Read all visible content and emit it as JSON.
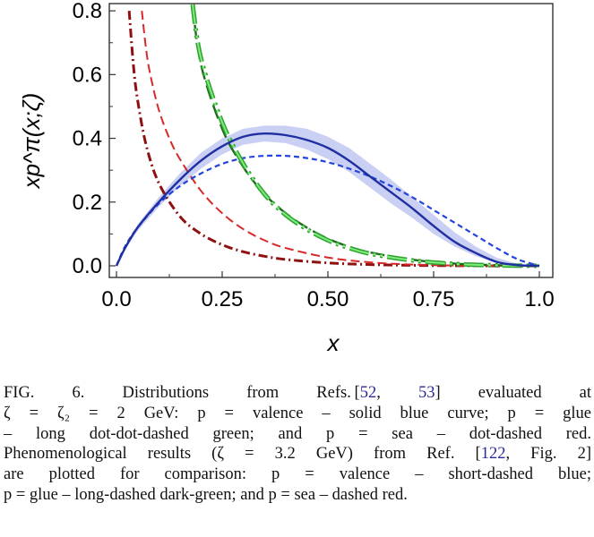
{
  "chart_data": {
    "type": "line",
    "ylabel": "xp^π(x;ζ)",
    "xlabel": "x",
    "xlim": [
      0.0,
      1.0
    ],
    "ylim": [
      0.0,
      0.82
    ],
    "x_ticks": [
      "0.0",
      "0.25",
      "0.50",
      "0.75",
      "1.0"
    ],
    "y_ticks": [
      "0.0",
      "0.2",
      "0.4",
      "0.6",
      "0.8"
    ],
    "grid": false,
    "colors": {
      "valence": "#1f2fa0",
      "band": "#b8bff0",
      "glue": "#2ea32e",
      "glue_light": "#7fea7f",
      "glue_dark": "#1c6b1c",
      "sea": "#8e1010",
      "sea_pheno": "#d62a2a",
      "pheno_valence": "#2244dd"
    },
    "series": [
      {
        "style": "solid blue",
        "color": "valence",
        "points": [
          [
            0,
            0
          ],
          [
            0.02,
            0.055
          ],
          [
            0.05,
            0.12
          ],
          [
            0.1,
            0.2
          ],
          [
            0.15,
            0.27
          ],
          [
            0.2,
            0.33
          ],
          [
            0.25,
            0.375
          ],
          [
            0.3,
            0.405
          ],
          [
            0.35,
            0.415
          ],
          [
            0.4,
            0.41
          ],
          [
            0.45,
            0.395
          ],
          [
            0.5,
            0.37
          ],
          [
            0.55,
            0.33
          ],
          [
            0.6,
            0.28
          ],
          [
            0.65,
            0.23
          ],
          [
            0.7,
            0.18
          ],
          [
            0.75,
            0.125
          ],
          [
            0.8,
            0.075
          ],
          [
            0.85,
            0.04
          ],
          [
            0.9,
            0.012
          ],
          [
            0.95,
            0.002
          ],
          [
            1.0,
            0
          ]
        ]
      },
      {
        "style": "long dot-dot-dashed green",
        "color": "glue",
        "points": [
          [
            0.18,
            0.82
          ],
          [
            0.2,
            0.65
          ],
          [
            0.25,
            0.45
          ],
          [
            0.3,
            0.32
          ],
          [
            0.35,
            0.225
          ],
          [
            0.4,
            0.16
          ],
          [
            0.45,
            0.115
          ],
          [
            0.5,
            0.08
          ],
          [
            0.55,
            0.056
          ],
          [
            0.6,
            0.038
          ],
          [
            0.7,
            0.017
          ],
          [
            0.8,
            0.006
          ],
          [
            0.9,
            0.0015
          ],
          [
            1.0,
            0
          ]
        ]
      },
      {
        "style": "long-dashed dark-green",
        "color": "glue_dark",
        "points": [
          [
            0.18,
            0.82
          ],
          [
            0.2,
            0.63
          ],
          [
            0.25,
            0.43
          ],
          [
            0.3,
            0.31
          ],
          [
            0.35,
            0.225
          ],
          [
            0.4,
            0.165
          ],
          [
            0.45,
            0.12
          ],
          [
            0.5,
            0.085
          ],
          [
            0.55,
            0.06
          ],
          [
            0.6,
            0.042
          ],
          [
            0.7,
            0.019
          ],
          [
            0.8,
            0.007
          ],
          [
            0.9,
            0.002
          ],
          [
            1.0,
            0
          ]
        ]
      },
      {
        "style": "dot-dashed red",
        "color": "sea",
        "points": [
          [
            0.03,
            0.8
          ],
          [
            0.04,
            0.63
          ],
          [
            0.05,
            0.52
          ],
          [
            0.07,
            0.38
          ],
          [
            0.1,
            0.26
          ],
          [
            0.15,
            0.155
          ],
          [
            0.2,
            0.1
          ],
          [
            0.25,
            0.066
          ],
          [
            0.3,
            0.044
          ],
          [
            0.35,
            0.03
          ],
          [
            0.4,
            0.02
          ],
          [
            0.5,
            0.009
          ],
          [
            0.6,
            0.004
          ],
          [
            0.7,
            0.0015
          ],
          [
            0.8,
            0.0004
          ],
          [
            0.9,
            0.0001
          ],
          [
            1.0,
            0
          ]
        ]
      },
      {
        "style": "short-dashed blue",
        "color": "pheno_valence",
        "points": [
          [
            0,
            0
          ],
          [
            0.02,
            0.06
          ],
          [
            0.05,
            0.12
          ],
          [
            0.1,
            0.195
          ],
          [
            0.15,
            0.25
          ],
          [
            0.2,
            0.29
          ],
          [
            0.25,
            0.32
          ],
          [
            0.3,
            0.338
          ],
          [
            0.35,
            0.345
          ],
          [
            0.4,
            0.345
          ],
          [
            0.45,
            0.338
          ],
          [
            0.5,
            0.325
          ],
          [
            0.55,
            0.305
          ],
          [
            0.6,
            0.28
          ],
          [
            0.65,
            0.25
          ],
          [
            0.7,
            0.215
          ],
          [
            0.75,
            0.175
          ],
          [
            0.8,
            0.135
          ],
          [
            0.85,
            0.095
          ],
          [
            0.9,
            0.055
          ],
          [
            0.95,
            0.02
          ],
          [
            1.0,
            0
          ]
        ]
      },
      {
        "style": "dashed red",
        "color": "sea_pheno",
        "points": [
          [
            0.06,
            0.8
          ],
          [
            0.07,
            0.68
          ],
          [
            0.08,
            0.6
          ],
          [
            0.1,
            0.49
          ],
          [
            0.125,
            0.4
          ],
          [
            0.15,
            0.335
          ],
          [
            0.2,
            0.235
          ],
          [
            0.25,
            0.165
          ],
          [
            0.3,
            0.115
          ],
          [
            0.35,
            0.08
          ],
          [
            0.4,
            0.056
          ],
          [
            0.5,
            0.026
          ],
          [
            0.6,
            0.011
          ],
          [
            0.7,
            0.004
          ],
          [
            0.8,
            0.001
          ],
          [
            0.9,
            0.0002
          ],
          [
            1.0,
            0
          ]
        ]
      }
    ],
    "band": {
      "color": "band",
      "x": [
        0.02,
        0.05,
        0.1,
        0.15,
        0.2,
        0.25,
        0.3,
        0.35,
        0.4,
        0.45,
        0.5,
        0.55,
        0.6,
        0.65,
        0.7,
        0.75,
        0.8,
        0.85,
        0.9,
        0.95,
        1.0
      ],
      "upper": [
        0.06,
        0.13,
        0.215,
        0.29,
        0.355,
        0.4,
        0.43,
        0.44,
        0.44,
        0.43,
        0.405,
        0.37,
        0.32,
        0.27,
        0.215,
        0.16,
        0.105,
        0.06,
        0.025,
        0.006,
        0
      ],
      "lower": [
        0.05,
        0.11,
        0.185,
        0.25,
        0.305,
        0.35,
        0.38,
        0.39,
        0.385,
        0.365,
        0.335,
        0.295,
        0.245,
        0.195,
        0.15,
        0.1,
        0.06,
        0.03,
        0.01,
        0.002,
        0
      ]
    }
  },
  "caption": {
    "lines": [
      [
        "FIG. 6. ",
        "Distributions from Refs. [",
        "52",
        ", ",
        "53",
        "] evaluated at"
      ],
      [
        "ζ = ζ₂ = 2 GeV: p = valence – solid blue curve; p = glue"
      ],
      [
        "– long dot-dot-dashed green; and p = sea – dot-dashed red."
      ],
      [
        "Phenomenological results (ζ = 3.2 GeV) from Ref. [",
        "122",
        ", Fig. 2]"
      ],
      [
        "are plotted for comparison: p = valence – short-dashed blue;"
      ],
      [
        "p = glue – long-dashed dark-green; and p = sea – dashed red."
      ]
    ]
  }
}
